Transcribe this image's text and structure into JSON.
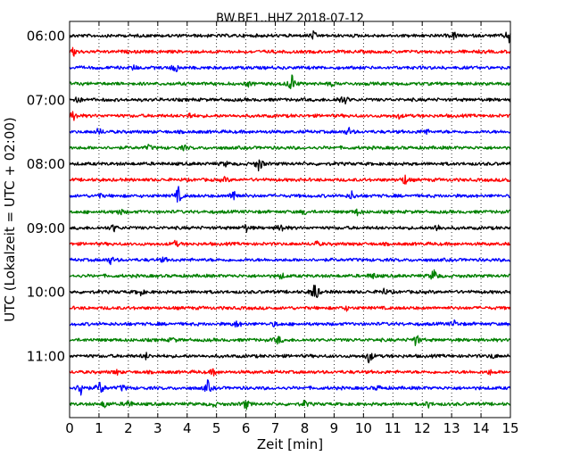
{
  "chart_data": {
    "type": "line",
    "subtype": "dayplot-seismogram",
    "title": "BW.BE1..HHZ 2018-07-12",
    "xlabel": "Zeit  [min]",
    "ylabel": "UTC (Lokalzeit = UTC + 02:00)",
    "xlim": [
      0,
      15
    ],
    "x_ticks": [
      "0",
      "1",
      "2",
      "3",
      "4",
      "5",
      "6",
      "7",
      "8",
      "9",
      "10",
      "11",
      "12",
      "13",
      "14",
      "15"
    ],
    "y_tick_labels": [
      "06:00",
      "07:00",
      "08:00",
      "09:00",
      "10:00",
      "11:00"
    ],
    "grid": "vertical dotted at each minute",
    "trace_colors": [
      "#000000",
      "#ff0000",
      "#0000ff",
      "#008000"
    ],
    "trace_interval_min": 15,
    "traces": [
      {
        "start": "06:00",
        "color": "#000000",
        "events": [
          [
            8.3,
            0.5
          ],
          [
            13.1,
            0.5
          ],
          [
            14.95,
            1.0
          ]
        ]
      },
      {
        "start": "06:15",
        "color": "#ff0000",
        "events": [
          [
            0.15,
            0.6
          ]
        ]
      },
      {
        "start": "06:30",
        "color": "#0000ff",
        "events": [
          [
            3.6,
            0.7
          ],
          [
            2.2,
            0.3
          ]
        ]
      },
      {
        "start": "06:45",
        "color": "#008000",
        "events": [
          [
            7.55,
            1.5
          ],
          [
            6.1,
            0.3
          ],
          [
            8.9,
            0.3
          ]
        ]
      },
      {
        "start": "07:00",
        "color": "#000000",
        "events": [
          [
            0.25,
            0.6
          ],
          [
            9.2,
            0.5
          ],
          [
            9.4,
            0.4
          ]
        ]
      },
      {
        "start": "07:15",
        "color": "#ff0000",
        "events": [
          [
            0.15,
            0.7
          ],
          [
            4.1,
            0.4
          ],
          [
            11.2,
            0.3
          ]
        ]
      },
      {
        "start": "07:30",
        "color": "#0000ff",
        "events": [
          [
            1.0,
            0.5
          ],
          [
            9.5,
            0.5
          ],
          [
            12.1,
            0.4
          ]
        ]
      },
      {
        "start": "07:45",
        "color": "#008000",
        "events": [
          [
            2.7,
            0.3
          ],
          [
            3.9,
            0.3
          ]
        ]
      },
      {
        "start": "08:00",
        "color": "#000000",
        "events": [
          [
            6.45,
            1.1
          ],
          [
            5.3,
            0.3
          ]
        ]
      },
      {
        "start": "08:15",
        "color": "#ff0000",
        "events": [
          [
            11.4,
            0.7
          ],
          [
            5.3,
            0.3
          ],
          [
            14.9,
            0.3
          ]
        ]
      },
      {
        "start": "08:30",
        "color": "#0000ff",
        "events": [
          [
            3.7,
            1.1
          ],
          [
            5.6,
            1.1
          ],
          [
            9.6,
            0.5
          ],
          [
            1.0,
            0.3
          ]
        ]
      },
      {
        "start": "08:45",
        "color": "#008000",
        "events": [
          [
            1.7,
            0.5
          ],
          [
            9.8,
            0.4
          ],
          [
            8.0,
            0.3
          ]
        ]
      },
      {
        "start": "09:00",
        "color": "#000000",
        "events": [
          [
            7.2,
            0.6
          ],
          [
            12.5,
            0.6
          ],
          [
            6.0,
            0.5
          ],
          [
            1.5,
            0.5
          ]
        ]
      },
      {
        "start": "09:15",
        "color": "#ff0000",
        "events": [
          [
            3.6,
            0.4
          ],
          [
            8.4,
            0.3
          ]
        ]
      },
      {
        "start": "09:30",
        "color": "#0000ff",
        "events": [
          [
            1.4,
            0.5
          ],
          [
            3.2,
            0.3
          ]
        ]
      },
      {
        "start": "09:45",
        "color": "#008000",
        "events": [
          [
            12.4,
            1.0
          ],
          [
            10.3,
            0.5
          ],
          [
            7.2,
            0.4
          ]
        ]
      },
      {
        "start": "10:00",
        "color": "#000000",
        "events": [
          [
            8.35,
            1.6
          ],
          [
            2.4,
            0.5
          ],
          [
            10.7,
            0.4
          ]
        ]
      },
      {
        "start": "10:15",
        "color": "#ff0000",
        "events": [
          [
            9.4,
            0.3
          ]
        ]
      },
      {
        "start": "10:30",
        "color": "#0000ff",
        "events": [
          [
            5.7,
            0.5
          ],
          [
            13.1,
            0.4
          ],
          [
            7.0,
            0.3
          ]
        ]
      },
      {
        "start": "10:45",
        "color": "#008000",
        "events": [
          [
            11.8,
            0.9
          ],
          [
            7.1,
            0.6
          ],
          [
            3.5,
            0.3
          ]
        ]
      },
      {
        "start": "11:00",
        "color": "#000000",
        "events": [
          [
            10.2,
            1.0
          ],
          [
            2.6,
            0.4
          ],
          [
            14.4,
            0.3
          ]
        ]
      },
      {
        "start": "11:15",
        "color": "#ff0000",
        "events": [
          [
            4.9,
            0.4
          ],
          [
            1.6,
            0.3
          ],
          [
            14.3,
            0.3
          ]
        ]
      },
      {
        "start": "11:30",
        "color": "#0000ff",
        "events": [
          [
            0.4,
            1.3
          ],
          [
            1.05,
            1.1
          ],
          [
            4.7,
            0.9
          ],
          [
            1.8,
            0.4
          ],
          [
            10.5,
            0.3
          ]
        ]
      },
      {
        "start": "11:45",
        "color": "#008000",
        "events": [
          [
            2.0,
            0.6
          ],
          [
            6.0,
            0.7
          ],
          [
            1.2,
            0.5
          ],
          [
            8.0,
            0.4
          ],
          [
            12.2,
            0.4
          ],
          [
            4.9,
            0.3
          ]
        ]
      }
    ]
  }
}
